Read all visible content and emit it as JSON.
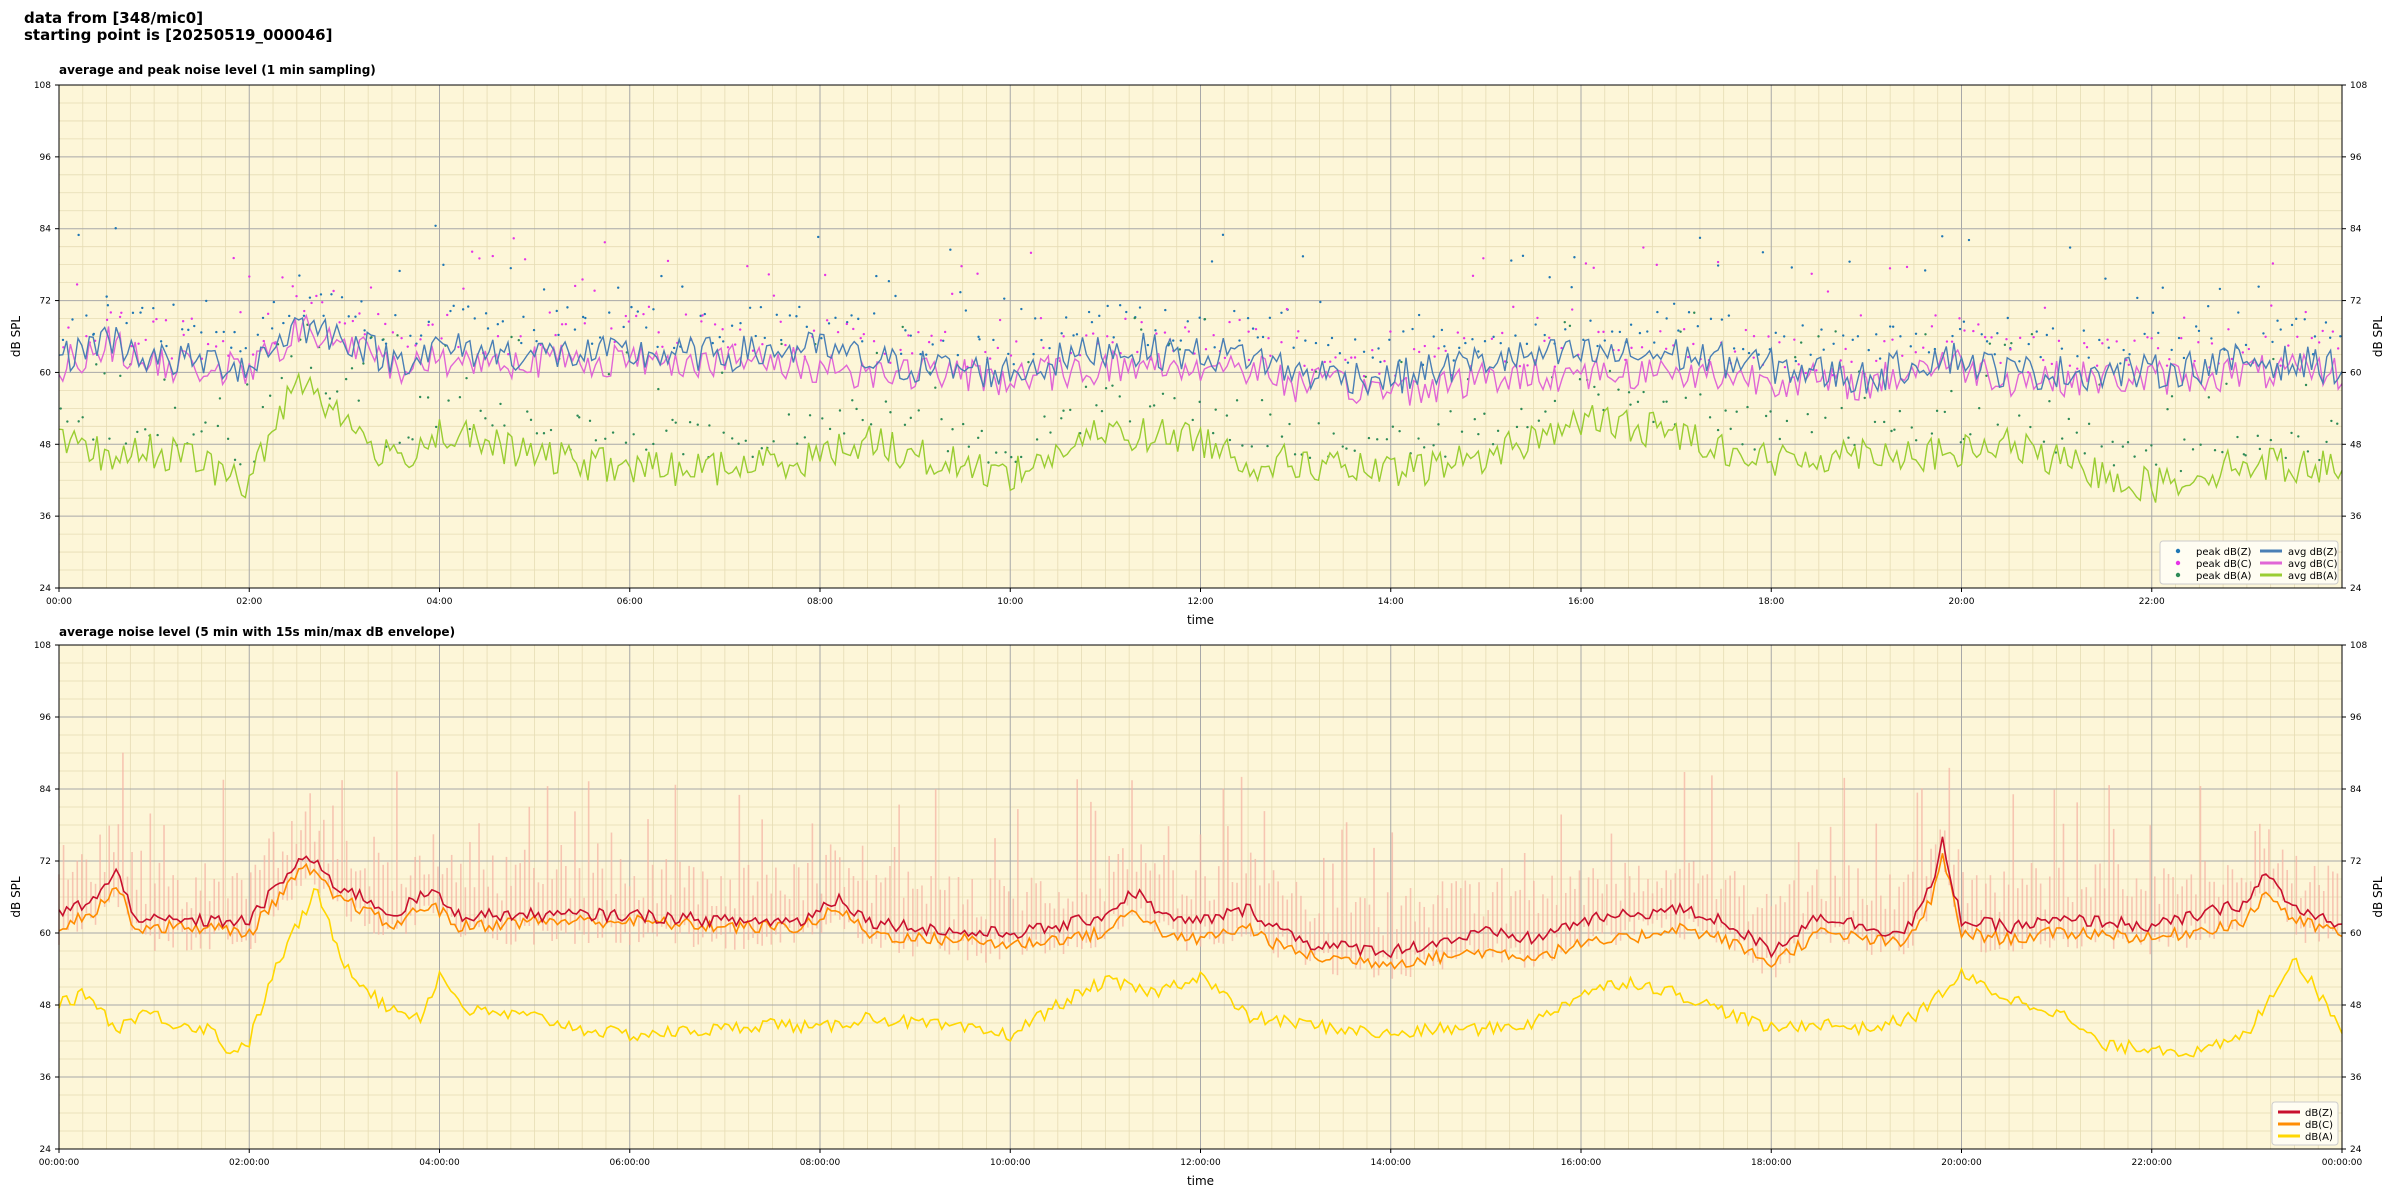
{
  "header": {
    "line1": "data from [348/mic0]",
    "line2": "starting point is [20250519_000046]"
  },
  "chart_data": [
    {
      "type": "line",
      "title": "average and peak noise level (1 min sampling)",
      "xlabel": "time",
      "ylabel": "dB SPL",
      "ylabel_right": "dB SPL",
      "ylim": [
        24,
        108
      ],
      "yticks": [
        "24",
        "36",
        "48",
        "60",
        "72",
        "84",
        "96",
        "108"
      ],
      "xlim_hours": [
        0,
        24
      ],
      "xticks": [
        "00:00",
        "02:00",
        "04:00",
        "06:00",
        "08:00",
        "10:00",
        "12:00",
        "14:00",
        "16:00",
        "18:00",
        "20:00",
        "22:00"
      ],
      "background": "#fdf6d8",
      "grid": true,
      "legend_position": "lower-right",
      "legend": [
        {
          "label": "peak dB(Z)",
          "kind": "dot",
          "color": "#1f77b4"
        },
        {
          "label": "peak dB(C)",
          "kind": "dot",
          "color": "#e633e6"
        },
        {
          "label": "peak dB(A)",
          "kind": "dot",
          "color": "#2e8b57"
        },
        {
          "label": "avg dB(Z)",
          "kind": "line",
          "color": "#4a7fb5"
        },
        {
          "label": "avg dB(C)",
          "kind": "line",
          "color": "#e066d6"
        },
        {
          "label": "avg dB(A)",
          "kind": "line",
          "color": "#9ACD32"
        }
      ],
      "series": [
        {
          "name": "avg dB(Z)",
          "color": "#4a7fb5",
          "points": [
            [
              0,
              62
            ],
            [
              0.5,
              66
            ],
            [
              1,
              62
            ],
            [
              1.5,
              62
            ],
            [
              2,
              61
            ],
            [
              2.5,
              68
            ],
            [
              3,
              66
            ],
            [
              3.5,
              62
            ],
            [
              4,
              64
            ],
            [
              5,
              63
            ],
            [
              6,
              63
            ],
            [
              7,
              63
            ],
            [
              8,
              64
            ],
            [
              8.5,
              62
            ],
            [
              9,
              61
            ],
            [
              10,
              60
            ],
            [
              11,
              64
            ],
            [
              12,
              63
            ],
            [
              12.5,
              63
            ],
            [
              13,
              60
            ],
            [
              14,
              59
            ],
            [
              15,
              62
            ],
            [
              16,
              63
            ],
            [
              17,
              63
            ],
            [
              18,
              61
            ],
            [
              19,
              59
            ],
            [
              19.8,
              63
            ],
            [
              20.5,
              60
            ],
            [
              21,
              60
            ],
            [
              22,
              60
            ],
            [
              23,
              62
            ],
            [
              24,
              61
            ]
          ]
        },
        {
          "name": "avg dB(C)",
          "color": "#e066d6",
          "points": [
            [
              0,
              61
            ],
            [
              0.5,
              65
            ],
            [
              1,
              61
            ],
            [
              1.5,
              61
            ],
            [
              2,
              60
            ],
            [
              2.5,
              67
            ],
            [
              3,
              65
            ],
            [
              3.5,
              61
            ],
            [
              4,
              62
            ],
            [
              5,
              62
            ],
            [
              6,
              62
            ],
            [
              7,
              62
            ],
            [
              8,
              61
            ],
            [
              8.5,
              60
            ],
            [
              9,
              60
            ],
            [
              10,
              59
            ],
            [
              11,
              61
            ],
            [
              12,
              61
            ],
            [
              12.5,
              61
            ],
            [
              13,
              58
            ],
            [
              14,
              57
            ],
            [
              15,
              59
            ],
            [
              16,
              60
            ],
            [
              17,
              60
            ],
            [
              18,
              59
            ],
            [
              19,
              58
            ],
            [
              19.8,
              62
            ],
            [
              20.5,
              59
            ],
            [
              21,
              59
            ],
            [
              22,
              59
            ],
            [
              23,
              60
            ],
            [
              24,
              60
            ]
          ]
        },
        {
          "name": "avg dB(A)",
          "color": "#9ACD32",
          "points": [
            [
              0,
              48
            ],
            [
              0.5,
              46
            ],
            [
              1,
              47
            ],
            [
              1.5,
              45
            ],
            [
              2,
              41
            ],
            [
              2.5,
              60
            ],
            [
              3,
              52
            ],
            [
              3.5,
              45
            ],
            [
              4,
              50
            ],
            [
              5,
              46
            ],
            [
              6,
              44
            ],
            [
              7,
              44
            ],
            [
              8,
              46
            ],
            [
              8.5,
              49
            ],
            [
              9,
              46
            ],
            [
              10,
              43
            ],
            [
              11,
              50
            ],
            [
              12,
              49
            ],
            [
              12.5,
              45
            ],
            [
              13,
              45
            ],
            [
              14,
              43
            ],
            [
              15,
              46
            ],
            [
              16,
              52
            ],
            [
              17,
              50
            ],
            [
              18,
              45
            ],
            [
              19,
              47
            ],
            [
              19.8,
              46
            ],
            [
              20.5,
              48
            ],
            [
              21,
              45
            ],
            [
              22,
              41
            ],
            [
              23,
              45
            ],
            [
              24,
              44
            ]
          ]
        }
      ]
    },
    {
      "type": "line",
      "title": "average noise level (5 min with 15s min/max dB envelope)",
      "xlabel": "time",
      "ylabel": "dB SPL",
      "ylabel_right": "dB SPL",
      "ylim": [
        24,
        108
      ],
      "yticks": [
        "24",
        "36",
        "48",
        "60",
        "72",
        "84",
        "96",
        "108"
      ],
      "xlim_hours": [
        0,
        24
      ],
      "xticks": [
        "00:00:00",
        "02:00:00",
        "04:00:00",
        "06:00:00",
        "08:00:00",
        "10:00:00",
        "12:00:00",
        "14:00:00",
        "16:00:00",
        "18:00:00",
        "20:00:00",
        "22:00:00",
        "00:00:00"
      ],
      "background": "#fdf6d8",
      "grid": true,
      "legend_position": "lower-right",
      "legend": [
        {
          "label": "dB(Z)",
          "kind": "line",
          "color": "#c8102e"
        },
        {
          "label": "dB(C)",
          "kind": "line",
          "color": "#ff8c00"
        },
        {
          "label": "dB(A)",
          "kind": "line",
          "color": "#ffd700"
        }
      ],
      "envelope_color": "#f5b5a5",
      "series": [
        {
          "name": "dB(Z)",
          "color": "#c8102e",
          "points": [
            [
              0,
              63
            ],
            [
              0.4,
              66
            ],
            [
              0.6,
              70
            ],
            [
              0.8,
              63
            ],
            [
              1,
              62
            ],
            [
              1.5,
              62
            ],
            [
              2,
              62
            ],
            [
              2.3,
              68
            ],
            [
              2.6,
              73
            ],
            [
              2.9,
              68
            ],
            [
              3.2,
              66
            ],
            [
              3.5,
              63
            ],
            [
              3.9,
              67
            ],
            [
              4.2,
              63
            ],
            [
              5,
              63
            ],
            [
              6,
              63
            ],
            [
              7,
              62
            ],
            [
              7.8,
              62
            ],
            [
              8.2,
              66
            ],
            [
              8.5,
              62
            ],
            [
              9,
              61
            ],
            [
              9.5,
              60
            ],
            [
              10,
              60
            ],
            [
              10.5,
              61
            ],
            [
              11,
              63
            ],
            [
              11.3,
              67
            ],
            [
              11.7,
              62
            ],
            [
              12,
              62
            ],
            [
              12.5,
              64
            ],
            [
              12.8,
              61
            ],
            [
              13.2,
              58
            ],
            [
              14,
              57
            ],
            [
              15,
              60
            ],
            [
              15.5,
              59
            ],
            [
              16,
              62
            ],
            [
              16.5,
              63
            ],
            [
              17,
              64
            ],
            [
              17.5,
              62
            ],
            [
              18,
              57
            ],
            [
              18.5,
              63
            ],
            [
              19,
              61
            ],
            [
              19.4,
              60
            ],
            [
              19.7,
              68
            ],
            [
              19.8,
              75
            ],
            [
              20,
              62
            ],
            [
              20.5,
              61
            ],
            [
              21,
              62
            ],
            [
              21.5,
              62
            ],
            [
              22,
              61
            ],
            [
              23,
              65
            ],
            [
              23.2,
              70
            ],
            [
              23.5,
              64
            ],
            [
              24,
              61
            ]
          ]
        },
        {
          "name": "dB(C)",
          "color": "#ff8c00",
          "points": [
            [
              0,
              61
            ],
            [
              0.4,
              64
            ],
            [
              0.6,
              68
            ],
            [
              0.8,
              61
            ],
            [
              1,
              61
            ],
            [
              1.5,
              61
            ],
            [
              2,
              60
            ],
            [
              2.3,
              66
            ],
            [
              2.6,
              71
            ],
            [
              2.9,
              66
            ],
            [
              3.2,
              64
            ],
            [
              3.5,
              61
            ],
            [
              3.9,
              65
            ],
            [
              4.2,
              61
            ],
            [
              5,
              62
            ],
            [
              6,
              62
            ],
            [
              7,
              61
            ],
            [
              7.8,
              61
            ],
            [
              8.2,
              64
            ],
            [
              8.5,
              60
            ],
            [
              9,
              59
            ],
            [
              9.5,
              59
            ],
            [
              10,
              58
            ],
            [
              10.5,
              59
            ],
            [
              11,
              60
            ],
            [
              11.3,
              64
            ],
            [
              11.7,
              59
            ],
            [
              12,
              59
            ],
            [
              12.5,
              61
            ],
            [
              12.8,
              58
            ],
            [
              13.2,
              56
            ],
            [
              14,
              55
            ],
            [
              15,
              57
            ],
            [
              15.5,
              56
            ],
            [
              16,
              58
            ],
            [
              16.5,
              59
            ],
            [
              17,
              61
            ],
            [
              17.5,
              59
            ],
            [
              18,
              55
            ],
            [
              18.5,
              60
            ],
            [
              19,
              59
            ],
            [
              19.4,
              58
            ],
            [
              19.7,
              66
            ],
            [
              19.8,
              73
            ],
            [
              20,
              60
            ],
            [
              20.5,
              59
            ],
            [
              21,
              60
            ],
            [
              21.5,
              60
            ],
            [
              22,
              59
            ],
            [
              23,
              62
            ],
            [
              23.2,
              67
            ],
            [
              23.5,
              62
            ],
            [
              24,
              60
            ]
          ]
        },
        {
          "name": "dB(A)",
          "color": "#ffd700",
          "points": [
            [
              0,
              48
            ],
            [
              0.3,
              50
            ],
            [
              0.6,
              44
            ],
            [
              0.9,
              47
            ],
            [
              1.2,
              45
            ],
            [
              1.6,
              44
            ],
            [
              1.8,
              40
            ],
            [
              2,
              42
            ],
            [
              2.3,
              55
            ],
            [
              2.7,
              67
            ],
            [
              3,
              55
            ],
            [
              3.4,
              48
            ],
            [
              3.8,
              46
            ],
            [
              4,
              53
            ],
            [
              4.3,
              47
            ],
            [
              5,
              46
            ],
            [
              5.5,
              44
            ],
            [
              6,
              43
            ],
            [
              7,
              44
            ],
            [
              7.5,
              45
            ],
            [
              8,
              44
            ],
            [
              8.5,
              46
            ],
            [
              9,
              45
            ],
            [
              9.5,
              44
            ],
            [
              10,
              43
            ],
            [
              10.5,
              48
            ],
            [
              11,
              52
            ],
            [
              11.5,
              50
            ],
            [
              12,
              53
            ],
            [
              12.5,
              46
            ],
            [
              13,
              45
            ],
            [
              13.5,
              44
            ],
            [
              14,
              43
            ],
            [
              14.5,
              44
            ],
            [
              15,
              44
            ],
            [
              15.5,
              45
            ],
            [
              16,
              50
            ],
            [
              16.5,
              52
            ],
            [
              17,
              50
            ],
            [
              17.5,
              47
            ],
            [
              18,
              44
            ],
            [
              18.5,
              45
            ],
            [
              19,
              44
            ],
            [
              19.5,
              46
            ],
            [
              20,
              53
            ],
            [
              20.5,
              49
            ],
            [
              21,
              47
            ],
            [
              21.5,
              41
            ],
            [
              22,
              41
            ],
            [
              22.5,
              40
            ],
            [
              23,
              43
            ],
            [
              23.5,
              56
            ],
            [
              24,
              44
            ]
          ]
        }
      ]
    }
  ]
}
